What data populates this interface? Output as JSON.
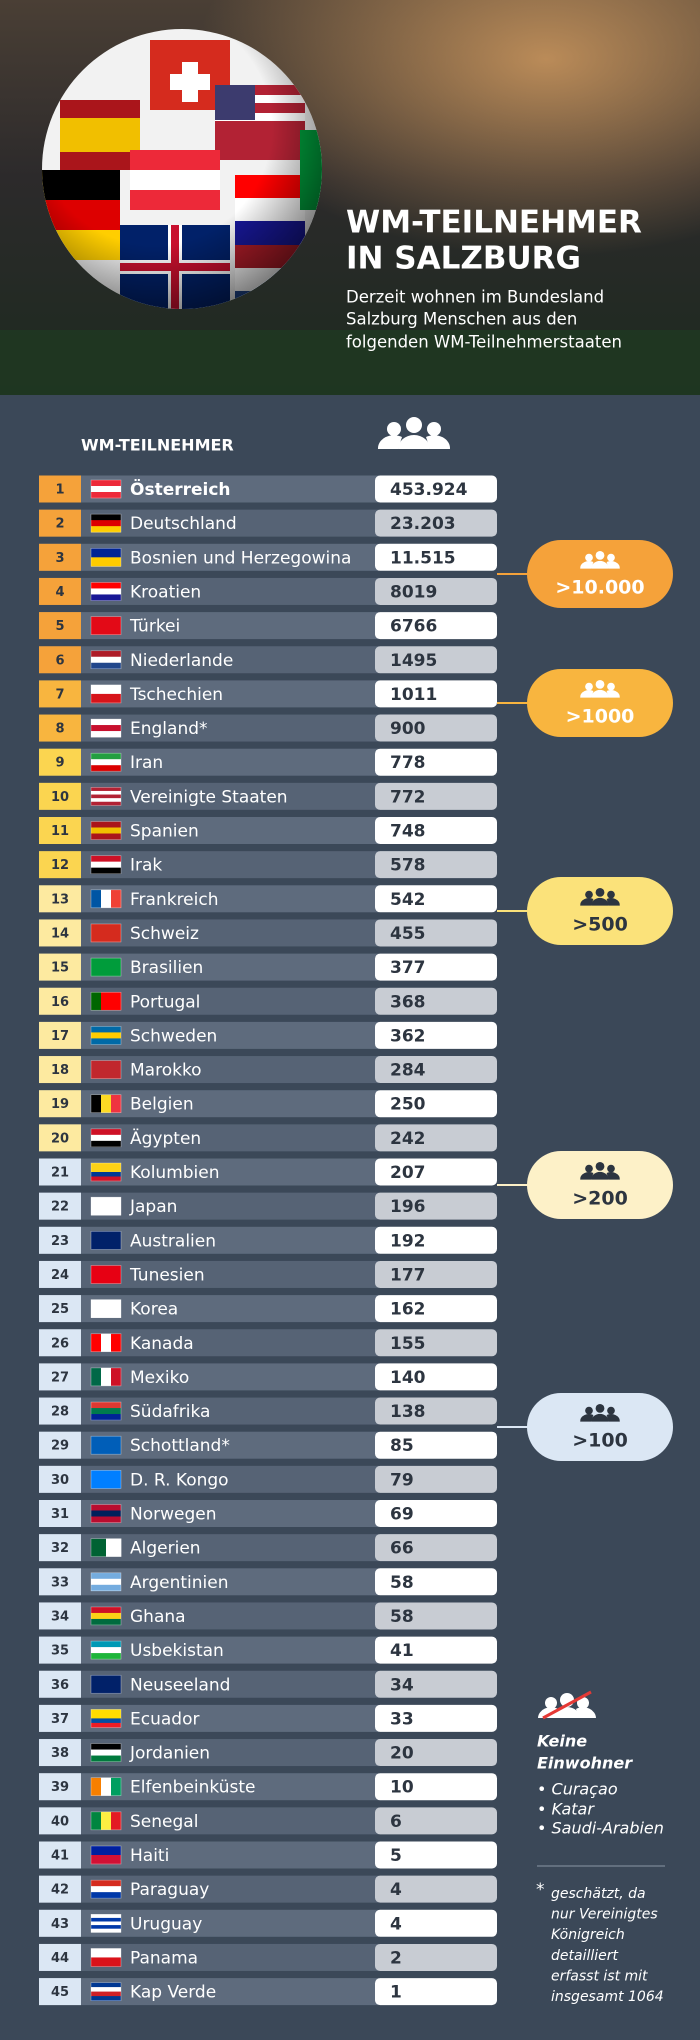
{
  "header": {
    "title_lines": [
      "WM-TEILNEHMER",
      "IN SALZBURG"
    ],
    "subtitle_lines": [
      "Derzeit wohnen im Bundesland",
      "Salzburg Menschen aus den",
      "folgenden WM-Teilnehmerstaaten"
    ]
  },
  "table": {
    "column_header": "WM-TEILNEHMER",
    "rows": [
      {
        "rank": 1,
        "country": "Österreich",
        "value": "453.924"
      },
      {
        "rank": 2,
        "country": "Deutschland",
        "value": "23.203"
      },
      {
        "rank": 3,
        "country": "Bosnien und Herzegowina",
        "value": "11.515"
      },
      {
        "rank": 4,
        "country": "Kroatien",
        "value": "8019"
      },
      {
        "rank": 5,
        "country": "Türkei",
        "value": "6766"
      },
      {
        "rank": 6,
        "country": "Niederlande",
        "value": "1495"
      },
      {
        "rank": 7,
        "country": "Tschechien",
        "value": "1011"
      },
      {
        "rank": 8,
        "country": "England*",
        "value": "900"
      },
      {
        "rank": 9,
        "country": "Iran",
        "value": "778"
      },
      {
        "rank": 10,
        "country": "Vereinigte Staaten",
        "value": "772"
      },
      {
        "rank": 11,
        "country": "Spanien",
        "value": "748"
      },
      {
        "rank": 12,
        "country": "Irak",
        "value": "578"
      },
      {
        "rank": 13,
        "country": "Frankreich",
        "value": "542"
      },
      {
        "rank": 14,
        "country": "Schweiz",
        "value": "455"
      },
      {
        "rank": 15,
        "country": "Brasilien",
        "value": "377"
      },
      {
        "rank": 16,
        "country": "Portugal",
        "value": "368"
      },
      {
        "rank": 17,
        "country": "Schweden",
        "value": "362"
      },
      {
        "rank": 18,
        "country": "Marokko",
        "value": "284"
      },
      {
        "rank": 19,
        "country": "Belgien",
        "value": "250"
      },
      {
        "rank": 20,
        "country": "Ägypten",
        "value": "242"
      },
      {
        "rank": 21,
        "country": "Kolumbien",
        "value": "207"
      },
      {
        "rank": 22,
        "country": "Japan",
        "value": "196"
      },
      {
        "rank": 23,
        "country": "Australien",
        "value": "192"
      },
      {
        "rank": 24,
        "country": "Tunesien",
        "value": "177"
      },
      {
        "rank": 25,
        "country": "Korea",
        "value": "162"
      },
      {
        "rank": 26,
        "country": "Kanada",
        "value": "155"
      },
      {
        "rank": 27,
        "country": "Mexiko",
        "value": "140"
      },
      {
        "rank": 28,
        "country": "Südafrika",
        "value": "138"
      },
      {
        "rank": 29,
        "country": "Schottland*",
        "value": "85"
      },
      {
        "rank": 30,
        "country": "D. R. Kongo",
        "value": "79"
      },
      {
        "rank": 31,
        "country": "Norwegen",
        "value": "69"
      },
      {
        "rank": 32,
        "country": "Algerien",
        "value": "66"
      },
      {
        "rank": 33,
        "country": "Argentinien",
        "value": "58"
      },
      {
        "rank": 34,
        "country": "Ghana",
        "value": "58"
      },
      {
        "rank": 35,
        "country": "Usbekistan",
        "value": "41"
      },
      {
        "rank": 36,
        "country": "Neuseeland",
        "value": "34"
      },
      {
        "rank": 37,
        "country": "Ecuador",
        "value": "33"
      },
      {
        "rank": 38,
        "country": "Jordanien",
        "value": "20"
      },
      {
        "rank": 39,
        "country": "Elfenbeinküste",
        "value": "10"
      },
      {
        "rank": 40,
        "country": "Senegal",
        "value": "6"
      },
      {
        "rank": 41,
        "country": "Haiti",
        "value": "5"
      },
      {
        "rank": 42,
        "country": "Paraguay",
        "value": "4"
      },
      {
        "rank": 43,
        "country": "Uruguay",
        "value": "4"
      },
      {
        "rank": 44,
        "country": "Panama",
        "value": "2"
      },
      {
        "rank": 45,
        "country": "Kap Verde",
        "value": "1"
      }
    ]
  },
  "badges": [
    ">10.000",
    ">1000",
    ">500",
    ">200",
    ">100"
  ],
  "side_note": {
    "heading_lines": [
      "Keine",
      "Einwohner"
    ],
    "items": [
      "• Curaçao",
      "• Katar",
      "• Saudi-Arabien"
    ]
  },
  "footnote": {
    "marker": "*",
    "lines": [
      "geschätzt, da",
      "nur Vereinigtes",
      "Königreich",
      "detailliert",
      "erfasst ist mit",
      "insgesamt 1064"
    ]
  }
}
